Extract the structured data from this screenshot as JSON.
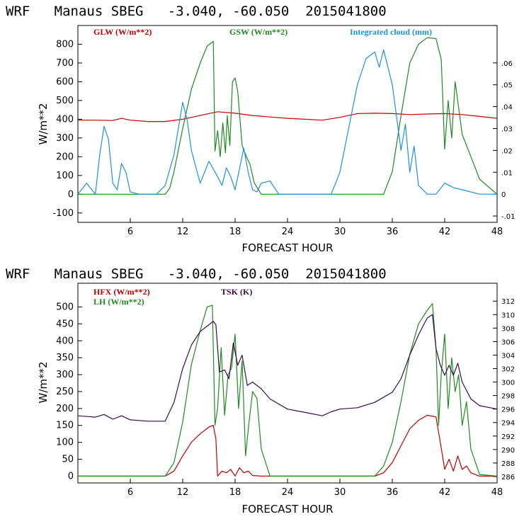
{
  "chart_data": [
    {
      "type": "line",
      "title": "WRF   Manaus SBEG   -3.040, -60.050  2015041800",
      "xlabel": "FORECAST HOUR",
      "ylabel": "W/m**2",
      "xlim": [
        0,
        48
      ],
      "ylim": [
        -150,
        900
      ],
      "xticks": [
        6,
        12,
        18,
        24,
        30,
        36,
        42,
        48
      ],
      "yticks": [
        -100,
        0,
        100,
        200,
        300,
        400,
        500,
        600,
        700,
        800
      ],
      "y2lim": [
        -0.0129,
        0.0771
      ],
      "y2ticks": [
        -0.01,
        0,
        0.01,
        0.02,
        0.03,
        0.04,
        0.05,
        0.06
      ],
      "y2ticklabels": [
        "-.01",
        "0",
        ".01",
        ".02",
        ".03",
        ".04",
        ".05",
        ".06"
      ],
      "legend": "top",
      "series": [
        {
          "name": "GLW (W/m**2)",
          "color": "#c00000",
          "axis": "left",
          "x": [
            0,
            2,
            4,
            5,
            6,
            8,
            10,
            12,
            14,
            16,
            18,
            20,
            22,
            24,
            26,
            28,
            30,
            32,
            34,
            36,
            38,
            40,
            42,
            44,
            46,
            48
          ],
          "y": [
            395,
            395,
            393,
            405,
            395,
            388,
            388,
            400,
            420,
            440,
            432,
            420,
            412,
            405,
            400,
            395,
            410,
            430,
            432,
            430,
            425,
            428,
            430,
            425,
            415,
            405
          ]
        },
        {
          "name": "GSW (W/m**2)",
          "color": "#1f8a1f",
          "axis": "left",
          "x": [
            0,
            10,
            10.5,
            11,
            12,
            13,
            14,
            14.8,
            15.5,
            15.7,
            16.0,
            16.3,
            16.6,
            16.9,
            17.1,
            17.4,
            17.7,
            18.0,
            18.3,
            18.8,
            19.3,
            19.7,
            20.2,
            21,
            35,
            36,
            37,
            38,
            39,
            40,
            41,
            41.6,
            42.0,
            42.4,
            42.8,
            43.2,
            44,
            45,
            46,
            48
          ],
          "y": [
            0,
            0,
            30,
            120,
            350,
            560,
            700,
            790,
            815,
            230,
            340,
            200,
            380,
            220,
            420,
            260,
            600,
            620,
            550,
            260,
            200,
            160,
            60,
            0,
            0,
            120,
            420,
            700,
            800,
            835,
            830,
            720,
            240,
            500,
            300,
            600,
            320,
            200,
            80,
            0
          ]
        },
        {
          "name": "Integrated cloud (mm)",
          "color": "#1e90e0",
          "axis": "right",
          "x": [
            0,
            1,
            2,
            2.5,
            3,
            3.5,
            4,
            4.5,
            5,
            5.5,
            6,
            7,
            9,
            10,
            11,
            11.5,
            12,
            12.5,
            13,
            14,
            15,
            16,
            16.5,
            17,
            17.5,
            18,
            19,
            19.5,
            20,
            20.5,
            21,
            22,
            23,
            24,
            29,
            30,
            31,
            32,
            33,
            34,
            34.5,
            35,
            36,
            37,
            37.5,
            38,
            38.5,
            39,
            40,
            41,
            42,
            43,
            44,
            45,
            46,
            48
          ],
          "y": [
            0,
            0.005,
            0,
            0.018,
            0.031,
            0.025,
            0.005,
            0.002,
            0.014,
            0.01,
            0.001,
            0,
            0,
            0.004,
            0.018,
            0.03,
            0.042,
            0.034,
            0.02,
            0.005,
            0.015,
            0.008,
            0.004,
            0.012,
            0.008,
            0.002,
            0.021,
            0.01,
            0.002,
            0.001,
            0.005,
            0.006,
            0,
            0,
            0,
            0.01,
            0.03,
            0.05,
            0.062,
            0.065,
            0.058,
            0.066,
            0.05,
            0.02,
            0.032,
            0.01,
            0.022,
            0.004,
            0,
            0,
            0.005,
            0.003,
            0.002,
            0.001,
            0,
            0
          ]
        }
      ]
    },
    {
      "type": "line",
      "title": "WRF   Manaus SBEG   -3.040, -60.050  2015041800",
      "xlabel": "FORECAST HOUR",
      "ylabel": "W/m**2",
      "xlim": [
        0,
        48
      ],
      "ylim": [
        -20,
        570
      ],
      "xticks": [
        6,
        12,
        18,
        24,
        30,
        36,
        42,
        48
      ],
      "yticks": [
        0,
        50,
        100,
        150,
        200,
        250,
        300,
        350,
        400,
        450,
        500
      ],
      "y2lim": [
        285.05,
        314.65
      ],
      "y2ticks": [
        286,
        288,
        290,
        292,
        294,
        296,
        298,
        300,
        302,
        304,
        306,
        308,
        310,
        312
      ],
      "legend": "top-left",
      "series": [
        {
          "name": "HFX (W/m**2)",
          "color": "#c00000",
          "axis": "left",
          "x": [
            0,
            10,
            11,
            12,
            13,
            14,
            15,
            15.5,
            15.8,
            16,
            16.5,
            17,
            17.5,
            18,
            18.5,
            19,
            19.5,
            20,
            21,
            34,
            35,
            36,
            37,
            38,
            39,
            40,
            41,
            41.5,
            42,
            42.5,
            43,
            43.5,
            44,
            44.5,
            45,
            46,
            48
          ],
          "y": [
            0,
            0,
            15,
            60,
            100,
            125,
            145,
            150,
            110,
            0,
            15,
            10,
            20,
            0,
            25,
            10,
            15,
            2,
            0,
            0,
            10,
            40,
            90,
            140,
            165,
            180,
            175,
            100,
            20,
            50,
            15,
            60,
            20,
            30,
            10,
            0,
            0
          ]
        },
        {
          "name": "LH  (W/m**2)",
          "color": "#1f8a1f",
          "axis": "left",
          "x": [
            0,
            10,
            11,
            12,
            13,
            14,
            14.8,
            15.4,
            15.7,
            16.0,
            16.4,
            16.8,
            17.2,
            17.6,
            18.0,
            18.4,
            18.8,
            19.2,
            19.6,
            20.0,
            20.5,
            21,
            22,
            34,
            35,
            36,
            37,
            38,
            39,
            40,
            40.6,
            41.0,
            41.3,
            41.6,
            42.0,
            42.4,
            42.8,
            43.2,
            43.6,
            44.0,
            44.5,
            45,
            46,
            48
          ],
          "y": [
            0,
            0,
            40,
            160,
            330,
            430,
            500,
            505,
            150,
            200,
            380,
            180,
            300,
            320,
            420,
            200,
            340,
            60,
            160,
            250,
            230,
            80,
            0,
            0,
            30,
            100,
            220,
            360,
            450,
            490,
            510,
            380,
            150,
            300,
            420,
            200,
            350,
            250,
            300,
            150,
            220,
            80,
            5,
            0
          ]
        },
        {
          "name": "TSK (K)",
          "color": "#3a0a4a",
          "axis": "right",
          "x": [
            0,
            2,
            3,
            4,
            5,
            6,
            8,
            10,
            11,
            12,
            13,
            14,
            15,
            15.5,
            15.8,
            16.2,
            16.8,
            17.3,
            17.8,
            18.3,
            18.8,
            19.4,
            20,
            21,
            22,
            24,
            26,
            28,
            29,
            30,
            32,
            34,
            36,
            37,
            38,
            39,
            40,
            40.6,
            41.0,
            41.5,
            42.0,
            42.5,
            43,
            43.5,
            44,
            45,
            46,
            48
          ],
          "y": [
            295.0,
            294.8,
            295.2,
            294.5,
            295.0,
            294.4,
            294.2,
            294.2,
            297.0,
            302.0,
            305.5,
            307.5,
            308.5,
            309.0,
            308.5,
            301.5,
            301.8,
            300.5,
            305.8,
            302.5,
            304.0,
            299.5,
            300.0,
            299.0,
            297.5,
            296.0,
            295.5,
            295.0,
            295.6,
            296.0,
            296.2,
            297.0,
            298.5,
            300.5,
            304.0,
            307.0,
            309.5,
            310.0,
            305.0,
            302.5,
            301.0,
            302.5,
            301.0,
            302.8,
            300.0,
            297.5,
            296.5,
            296.0
          ]
        }
      ]
    }
  ]
}
